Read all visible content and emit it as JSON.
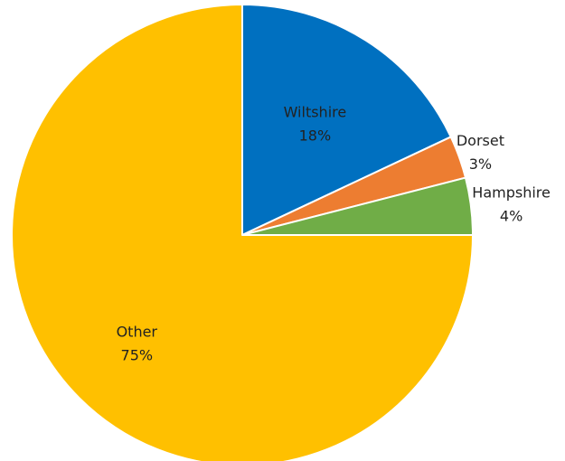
{
  "chart_data": {
    "type": "pie",
    "start_angle": "12 o'clock",
    "direction": "clockwise",
    "legend": "none",
    "slices": [
      {
        "name": "Wiltshire",
        "value": 18,
        "label": "18%",
        "color": "#0070C0",
        "label_position": "inside"
      },
      {
        "name": "Dorset",
        "value": 3,
        "label": "3%",
        "color": "#ED7D31",
        "label_position": "outside"
      },
      {
        "name": "Hampshire",
        "value": 4,
        "label": "4%",
        "color": "#70AD47",
        "label_position": "outside"
      },
      {
        "name": "Other",
        "value": 75,
        "label": "75%",
        "color": "#FFC000",
        "label_position": "inside"
      }
    ]
  }
}
